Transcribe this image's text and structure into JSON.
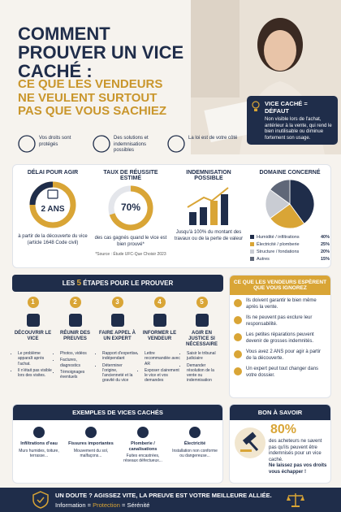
{
  "header": {
    "title": "COMMENT PROUVER UN VICE CACHÉ :",
    "subtitle": "CE QUE LES VENDEURS NE VEULENT SURTOUT PAS QUE VOUS SACHIEZ"
  },
  "definition": {
    "title": "VICE CACHÉ = DÉFAUT",
    "text": "Non visible lors de l'achat, antérieur à la vente, qui rend le bien inutilisable ou diminue fortement son usage."
  },
  "badges": [
    "Vos droits sont protégés",
    "Des solutions et indemnisations possibles",
    "La loi est de votre côté"
  ],
  "stats": {
    "delay": {
      "title": "DÉLAI POUR AGIR",
      "value": "2 ANS",
      "text": "à partir de la découverte du vice (article 1648 Code civil)"
    },
    "rate": {
      "title": "TAUX DE RÉUSSITE ESTIMÉ",
      "value": 70,
      "value_label": "70%",
      "text": "des cas gagnés quand le vice est bien prouvé*",
      "source": "*Source : Étude UFC-Que Choisir 2023"
    },
    "compensation": {
      "title": "INDEMNISATION POSSIBLE",
      "text": "Jusqu'à 100% du montant des travaux ou de la perte de valeur"
    },
    "domain": {
      "title": "DOMAINE CONCERNÉ",
      "type": "pie",
      "categories": [
        "Humidité / infiltrations",
        "Électricité / plomberie",
        "Structure / fondations",
        "Autres"
      ],
      "values": [
        40,
        25,
        20,
        15
      ],
      "value_labels": [
        "40%",
        "25%",
        "20%",
        "15%"
      ],
      "colors": [
        "#1f2d4a",
        "#d9a536",
        "#c9ccd3",
        "#5f6778"
      ]
    }
  },
  "steps": {
    "title_before": "LES",
    "title_number": "5",
    "title_after": "ÉTAPES POUR LE PROUVER",
    "items": [
      {
        "number": 1,
        "title": "DÉCOUVRIR LE VICE",
        "bullets": [
          "Le problème apparaît après l'achat.",
          "Il n'était pas visible lors des visites."
        ]
      },
      {
        "number": 2,
        "title": "RÉUNIR DES PREUVES",
        "bullets": [
          "Photos, vidéos",
          "Factures, diagnostics",
          "Témoignages éventuels"
        ]
      },
      {
        "number": 3,
        "title": "FAIRE APPEL À UN EXPERT",
        "bullets": [
          "Rapport d'expertise indépendant",
          "Déterminer l'origine, l'ancienneté et la gravité du vice"
        ]
      },
      {
        "number": 4,
        "title": "INFORMER LE VENDEUR",
        "bullets": [
          "Lettre recommandée avec AR",
          "Exposer clairement le vice et vos demandes"
        ]
      },
      {
        "number": 5,
        "title": "AGIR EN JUSTICE SI NÉCESSAIRE",
        "bullets": [
          "Saisir le tribunal judiciaire",
          "Demander résolution de la vente ou indemnisation"
        ]
      }
    ]
  },
  "sellers": {
    "title": "CE QUE LES VENDEURS ESPÈRENT QUE VOUS IGNOREZ",
    "items": [
      "Ils doivent garantir le bien même après la vente.",
      "Ils ne peuvent pas exclure leur responsabilité.",
      "Les petites réparations peuvent devenir de grosses indemnités.",
      "Vous avez 2 ANS pour agir à partir de la découverte.",
      "Un expert peut tout changer dans votre dossier."
    ]
  },
  "examples": {
    "title": "EXEMPLES DE VICES CACHÉS",
    "items": [
      {
        "name": "Infiltrations d'eau",
        "text": "Murs humides, toiture, terrasse..."
      },
      {
        "name": "Fissures importantes",
        "text": "Mouvement du sol, malfaçons..."
      },
      {
        "name": "Plomberie / canalisations",
        "text": "Fuites encastrées, réseaux défectueux..."
      },
      {
        "name": "Électricité",
        "text": "Installation non conforme ou dangereuse..."
      }
    ]
  },
  "good_to_know": {
    "title": "BON À SAVOIR",
    "value": 80,
    "value_label": "80%",
    "text": "des acheteurs ne savent pas qu'ils peuvent être indemnisés pour un vice caché.",
    "strong": "Ne laissez pas vos droits vous échapper !"
  },
  "footer": {
    "text": "UN DOUTE ? AGISSEZ VITE, LA PREUVE EST VOTRE MEILLEURE ALLIÉE.",
    "words": [
      "Information",
      "Protection",
      "Sérénité"
    ],
    "separator": "="
  }
}
